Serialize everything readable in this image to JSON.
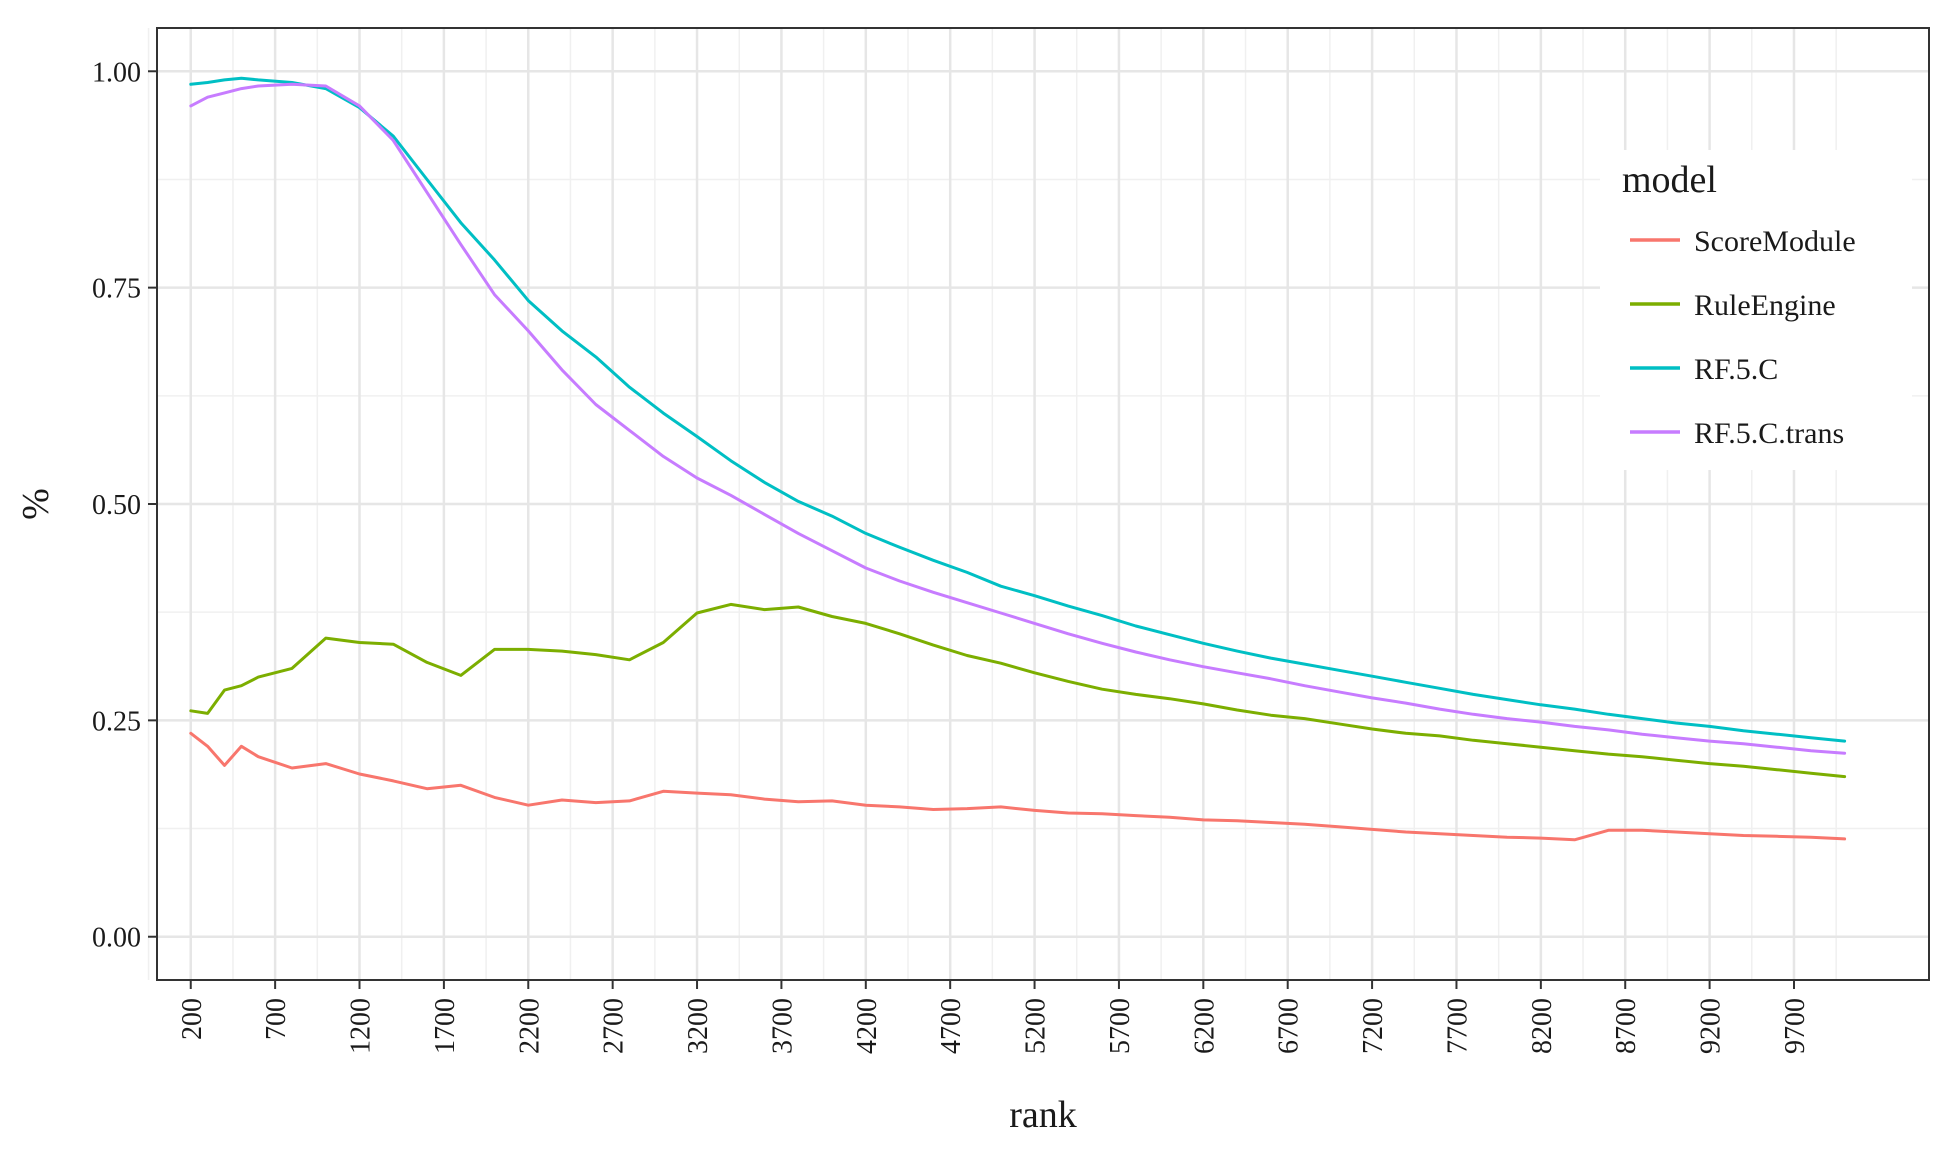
{
  "chart_data": {
    "type": "line",
    "xlabel": "rank",
    "ylabel": "%",
    "xlim": [
      0,
      10500
    ],
    "ylim": [
      -0.05,
      1.05
    ],
    "x_ticks": [
      200,
      700,
      1200,
      1700,
      2200,
      2700,
      3200,
      3700,
      4200,
      4700,
      5200,
      5700,
      6200,
      6700,
      7200,
      7700,
      8200,
      8700,
      9200,
      9700
    ],
    "y_ticks": [
      0.0,
      0.25,
      0.5,
      0.75,
      1.0
    ],
    "y_tick_labels": [
      "0.00",
      "0.25",
      "0.50",
      "0.75",
      "1.00"
    ],
    "grid": true,
    "legend": {
      "title": "model",
      "position": "right-top"
    },
    "x": [
      200,
      300,
      400,
      500,
      600,
      800,
      1000,
      1200,
      1400,
      1600,
      1800,
      2000,
      2200,
      2400,
      2600,
      2800,
      3000,
      3200,
      3400,
      3600,
      3800,
      4000,
      4200,
      4400,
      4600,
      4800,
      5000,
      5200,
      5400,
      5600,
      5800,
      6000,
      6200,
      6400,
      6600,
      6800,
      7000,
      7200,
      7400,
      7600,
      7800,
      8000,
      8200,
      8400,
      8600,
      8800,
      9000,
      9200,
      9400,
      9600,
      9800,
      10000
    ],
    "series": [
      {
        "name": "ScoreModule",
        "color": "#F8766D",
        "values": [
          0.235,
          0.22,
          0.198,
          0.22,
          0.208,
          0.195,
          0.2,
          0.188,
          0.18,
          0.171,
          0.175,
          0.161,
          0.152,
          0.158,
          0.155,
          0.157,
          0.168,
          0.166,
          0.164,
          0.159,
          0.156,
          0.157,
          0.152,
          0.15,
          0.147,
          0.148,
          0.15,
          0.146,
          0.143,
          0.142,
          0.14,
          0.138,
          0.135,
          0.134,
          0.132,
          0.13,
          0.127,
          0.124,
          0.121,
          0.119,
          0.117,
          0.115,
          0.114,
          0.112,
          0.123,
          0.123,
          0.121,
          0.119,
          0.117,
          0.116,
          0.115,
          0.113
        ]
      },
      {
        "name": "RuleEngine",
        "color": "#7CAE00",
        "values": [
          0.261,
          0.258,
          0.285,
          0.29,
          0.3,
          0.31,
          0.345,
          0.34,
          0.338,
          0.317,
          0.302,
          0.332,
          0.332,
          0.33,
          0.326,
          0.32,
          0.34,
          0.374,
          0.384,
          0.378,
          0.381,
          0.37,
          0.362,
          0.35,
          0.337,
          0.325,
          0.316,
          0.305,
          0.295,
          0.286,
          0.28,
          0.275,
          0.269,
          0.262,
          0.256,
          0.252,
          0.246,
          0.24,
          0.235,
          0.232,
          0.227,
          0.223,
          0.219,
          0.215,
          0.211,
          0.208,
          0.204,
          0.2,
          0.197,
          0.193,
          0.189,
          0.185
        ]
      },
      {
        "name": "RF.5.C",
        "color": "#00BFC4",
        "values": [
          0.985,
          0.987,
          0.99,
          0.992,
          0.99,
          0.987,
          0.98,
          0.958,
          0.925,
          0.875,
          0.825,
          0.782,
          0.735,
          0.7,
          0.67,
          0.635,
          0.605,
          0.578,
          0.55,
          0.525,
          0.503,
          0.486,
          0.466,
          0.45,
          0.435,
          0.421,
          0.405,
          0.394,
          0.382,
          0.371,
          0.359,
          0.349,
          0.339,
          0.33,
          0.322,
          0.315,
          0.308,
          0.301,
          0.294,
          0.287,
          0.28,
          0.274,
          0.268,
          0.263,
          0.257,
          0.252,
          0.247,
          0.243,
          0.238,
          0.234,
          0.23,
          0.226
        ]
      },
      {
        "name": "RF.5.C.trans",
        "color": "#C77CFF",
        "values": [
          0.96,
          0.97,
          0.975,
          0.98,
          0.983,
          0.985,
          0.983,
          0.96,
          0.92,
          0.86,
          0.8,
          0.742,
          0.7,
          0.655,
          0.615,
          0.585,
          0.555,
          0.53,
          0.51,
          0.488,
          0.466,
          0.446,
          0.426,
          0.411,
          0.398,
          0.386,
          0.374,
          0.362,
          0.35,
          0.339,
          0.329,
          0.32,
          0.312,
          0.305,
          0.298,
          0.29,
          0.283,
          0.276,
          0.27,
          0.263,
          0.257,
          0.252,
          0.248,
          0.243,
          0.239,
          0.234,
          0.23,
          0.226,
          0.223,
          0.219,
          0.215,
          0.212
        ]
      }
    ]
  }
}
